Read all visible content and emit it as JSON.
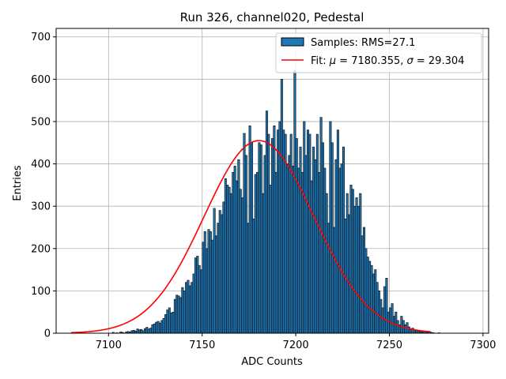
{
  "chart_data": {
    "type": "bar",
    "title": "Run 326, channel020, Pedestal",
    "xlabel": "ADC Counts",
    "ylabel": "Entries",
    "xlim": [
      7072,
      7303
    ],
    "ylim": [
      0,
      720
    ],
    "xticks": [
      7100,
      7150,
      7200,
      7250,
      7300
    ],
    "yticks": [
      0,
      100,
      200,
      300,
      400,
      500,
      600,
      700
    ],
    "grid": true,
    "legend_position": "top-right",
    "hist": {
      "name": "Samples: RMS=27.1",
      "bin_start": 7080,
      "bin_width": 1,
      "values": [
        0,
        0,
        0,
        0,
        0,
        0,
        0,
        0,
        0,
        0,
        0,
        0,
        0,
        0,
        0,
        0,
        0,
        0,
        0,
        0,
        0,
        0,
        2,
        0,
        1,
        0,
        3,
        2,
        0,
        3,
        4,
        3,
        6,
        7,
        5,
        10,
        8,
        9,
        6,
        11,
        14,
        10,
        12,
        20,
        22,
        26,
        28,
        24,
        30,
        35,
        44,
        55,
        60,
        48,
        50,
        80,
        90,
        88,
        84,
        108,
        100,
        120,
        125,
        112,
        120,
        140,
        178,
        182,
        160,
        150,
        215,
        240,
        200,
        245,
        240,
        220,
        295,
        230,
        260,
        290,
        280,
        310,
        365,
        350,
        345,
        330,
        380,
        395,
        360,
        410,
        340,
        320,
        472,
        420,
        260,
        490,
        450,
        270,
        375,
        380,
        450,
        445,
        330,
        420,
        525,
        470,
        350,
        460,
        490,
        380,
        480,
        500,
        600,
        480,
        470,
        400,
        420,
        470,
        395,
        620,
        460,
        390,
        440,
        380,
        500,
        420,
        480,
        470,
        360,
        440,
        410,
        470,
        380,
        510,
        450,
        390,
        330,
        260,
        500,
        450,
        250,
        410,
        480,
        390,
        400,
        440,
        270,
        330,
        280,
        350,
        340,
        300,
        320,
        300,
        330,
        230,
        250,
        200,
        180,
        170,
        160,
        140,
        150,
        120,
        100,
        80,
        60,
        110,
        130,
        50,
        60,
        70,
        40,
        50,
        30,
        20,
        40,
        30,
        20,
        25,
        15,
        10,
        12,
        8,
        6,
        5,
        4,
        3,
        5,
        2,
        2,
        3,
        2,
        1,
        0,
        0,
        1,
        0,
        0,
        0
      ]
    },
    "fit": {
      "name": "Fit: μ = 7180.355, σ = 29.304",
      "legend_prefix": "Fit: ",
      "mu_symbol": "μ",
      "mu_value": " = 7180.355, ",
      "sigma_symbol": "σ",
      "sigma_value": " = 29.304",
      "mu": 7180.355,
      "sigma": 29.304,
      "amplitude": 455,
      "x_range": [
        7080,
        7272
      ]
    },
    "colors": {
      "bar_fill": "#1f77b4",
      "bar_edge": "#000000",
      "fit_line": "#ff0000",
      "grid": "#b0b0b0"
    }
  }
}
